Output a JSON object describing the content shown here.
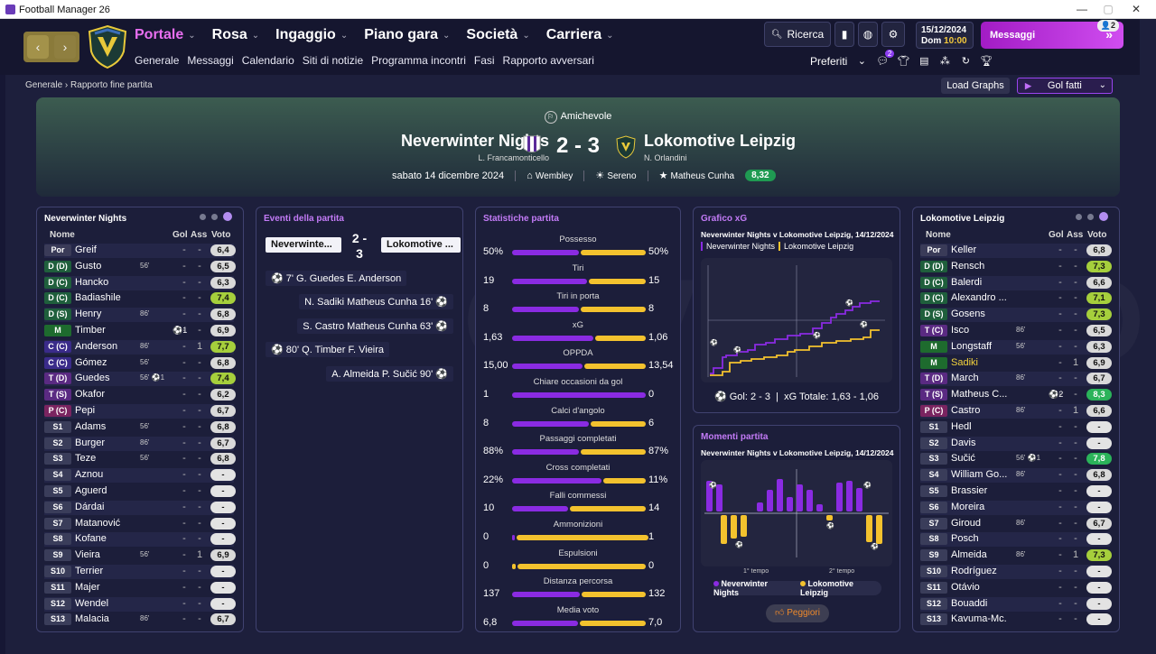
{
  "window": {
    "title": "Football Manager 26"
  },
  "nav": {
    "menu": [
      {
        "label": "Portale",
        "active": true
      },
      {
        "label": "Rosa"
      },
      {
        "label": "Ingaggio"
      },
      {
        "label": "Piano gara"
      },
      {
        "label": "Società"
      },
      {
        "label": "Carriera"
      }
    ],
    "submenu": [
      "Generale",
      "Messaggi",
      "Calendario",
      "Siti di notizie",
      "Programma incontri",
      "Fasi",
      "Rapporto avversari"
    ],
    "search": "Ricerca",
    "date": "15/12/2024",
    "day": "Dom",
    "time": "10:00",
    "messages": "Messaggi",
    "messages_count": "2",
    "favorites": "Preferiti",
    "fav_badge": "2"
  },
  "breadcrumb": {
    "root": "Generale",
    "current": "Rapporto fine partita"
  },
  "actions": {
    "load_graphs": "Load Graphs",
    "gol_fatti": "Gol fatti"
  },
  "match": {
    "competition": "Amichevole",
    "home": "Neverwinter Nights",
    "home_manager": "L. Francamonticello",
    "away": "Lokomotive Leipzig",
    "away_manager": "N. Orlandini",
    "score": "2 - 3",
    "date": "sabato 14 dicembre 2024",
    "stadium": "Wembley",
    "weather": "Sereno",
    "motm": "Matheus Cunha",
    "motm_rating": "8,32"
  },
  "home_panel": {
    "title": "Neverwinter Nights",
    "cols": [
      "Nome",
      "Gol",
      "Ass",
      "Voto"
    ],
    "rows": [
      {
        "pos": "Por",
        "name": "Greif",
        "ev": "",
        "g": "-",
        "a": "-",
        "r": "6,4"
      },
      {
        "pos": "D (D)",
        "name": "Gusto",
        "ev": "56'",
        "g": "-",
        "a": "-",
        "r": "6,5"
      },
      {
        "pos": "D (C)",
        "name": "Hancko",
        "ev": "",
        "g": "-",
        "a": "-",
        "r": "6,3"
      },
      {
        "pos": "D (C)",
        "name": "Badiashile",
        "ev": "",
        "g": "-",
        "a": "-",
        "r": "7,4"
      },
      {
        "pos": "D (S)",
        "name": "Henry",
        "ev": "86'",
        "g": "-",
        "a": "-",
        "r": "6,8"
      },
      {
        "pos": "M",
        "name": "Timber",
        "ev": "⚽1",
        "g": "-",
        "a": "-",
        "r": "6,9"
      },
      {
        "pos": "C (C)",
        "name": "Anderson",
        "ev": "86'",
        "g": "-",
        "a": "1",
        "r": "7,7"
      },
      {
        "pos": "C (C)",
        "name": "Gómez",
        "ev": "56'",
        "g": "-",
        "a": "-",
        "r": "6,8"
      },
      {
        "pos": "T (D)",
        "name": "Guedes",
        "ev": "56' ⚽1",
        "g": "-",
        "a": "-",
        "r": "7,4"
      },
      {
        "pos": "T (S)",
        "name": "Okafor",
        "ev": "",
        "g": "-",
        "a": "-",
        "r": "6,2"
      },
      {
        "pos": "P (C)",
        "name": "Pepi",
        "ev": "",
        "g": "-",
        "a": "-",
        "r": "6,7"
      },
      {
        "pos": "S1",
        "name": "Adams",
        "ev": "56'",
        "g": "-",
        "a": "-",
        "r": "6,8"
      },
      {
        "pos": "S2",
        "name": "Burger",
        "ev": "86'",
        "g": "-",
        "a": "-",
        "r": "6,7"
      },
      {
        "pos": "S3",
        "name": "Teze",
        "ev": "56'",
        "g": "-",
        "a": "-",
        "r": "6,8"
      },
      {
        "pos": "S4",
        "name": "Aznou",
        "ev": "",
        "g": "-",
        "a": "-",
        "r": "-"
      },
      {
        "pos": "S5",
        "name": "Aguerd",
        "ev": "",
        "g": "-",
        "a": "-",
        "r": "-"
      },
      {
        "pos": "S6",
        "name": "Dárdai",
        "ev": "",
        "g": "-",
        "a": "-",
        "r": "-"
      },
      {
        "pos": "S7",
        "name": "Matanović",
        "ev": "",
        "g": "-",
        "a": "-",
        "r": "-"
      },
      {
        "pos": "S8",
        "name": "Kofane",
        "ev": "",
        "g": "-",
        "a": "-",
        "r": "-"
      },
      {
        "pos": "S9",
        "name": "Vieira",
        "ev": "56'",
        "g": "-",
        "a": "1",
        "r": "6,9"
      },
      {
        "pos": "S10",
        "name": "Terrier",
        "ev": "",
        "g": "-",
        "a": "-",
        "r": "-"
      },
      {
        "pos": "S11",
        "name": "Majer",
        "ev": "",
        "g": "-",
        "a": "-",
        "r": "-"
      },
      {
        "pos": "S12",
        "name": "Wendel",
        "ev": "",
        "g": "-",
        "a": "-",
        "r": "-"
      },
      {
        "pos": "S13",
        "name": "Malacia",
        "ev": "86'",
        "g": "-",
        "a": "-",
        "r": "6,7"
      }
    ]
  },
  "events_panel": {
    "title": "Eventi della partita",
    "home": "Neverwinte...",
    "away": "Lokomotive ...",
    "score_top": "2 -",
    "score_bottom": "3",
    "events": [
      {
        "side": "home",
        "text": "7' G. Guedes E. Anderson"
      },
      {
        "side": "away",
        "text": "N. Sadiki Matheus Cunha 16'"
      },
      {
        "side": "away",
        "text": "S. Castro Matheus Cunha 63'"
      },
      {
        "side": "home",
        "text": "80' Q. Timber F. Vieira"
      },
      {
        "side": "away",
        "text": "A. Almeida P. Sučić 90'"
      }
    ]
  },
  "stats_panel": {
    "title": "Statistiche partita",
    "stats": [
      {
        "label": "Possesso",
        "home": "50%",
        "away": "50%",
        "hv": 50,
        "av": 50
      },
      {
        "label": "Tiri",
        "home": "19",
        "away": "15",
        "hv": 19,
        "av": 15
      },
      {
        "label": "Tiri in porta",
        "home": "8",
        "away": "8",
        "hv": 8,
        "av": 8
      },
      {
        "label": "xG",
        "home": "1,63",
        "away": "1,06",
        "hv": 1.63,
        "av": 1.06
      },
      {
        "label": "OPPDA",
        "home": "15,00",
        "away": "13,54",
        "hv": 15,
        "av": 13.54
      },
      {
        "label": "Chiare occasioni da gol",
        "home": "1",
        "away": "0",
        "hv": 1,
        "av": 0
      },
      {
        "label": "Calci d'angolo",
        "home": "8",
        "away": "6",
        "hv": 8,
        "av": 6
      },
      {
        "label": "Passaggi completati",
        "home": "88%",
        "away": "87%",
        "hv": 88,
        "av": 87
      },
      {
        "label": "Cross completati",
        "home": "22%",
        "away": "11%",
        "hv": 22,
        "av": 11
      },
      {
        "label": "Falli commessi",
        "home": "10",
        "away": "14",
        "hv": 10,
        "av": 14
      },
      {
        "label": "Ammonizioni",
        "home": "0",
        "away": "1",
        "hv": 0,
        "av": 1
      },
      {
        "label": "Espulsioni",
        "home": "0",
        "away": "0",
        "hv": 0,
        "av": 0
      },
      {
        "label": "Distanza percorsa",
        "home": "137",
        "away": "132",
        "hv": 137,
        "av": 132
      },
      {
        "label": "Media voto",
        "home": "6,8",
        "away": "7,0",
        "hv": 6.8,
        "av": 7.0
      }
    ]
  },
  "xg_panel": {
    "title": "Grafico xG",
    "subtitle": "Neverwinter Nights v Lokomotive Leipzig, 14/12/2024",
    "legend_home": "Neverwinter Nights",
    "legend_away": "Lokomotive Leipzig",
    "goals": "Gol: 2 - 3",
    "xg_total": "xG Totale: 1,63 - 1,06"
  },
  "moments_panel": {
    "title": "Momenti partita",
    "subtitle": "Neverwinter Nights v Lokomotive Leipzig, 14/12/2024",
    "first_half": "1° tempo",
    "second_half": "2° tempo",
    "legend_home": "Neverwinter Nights",
    "legend_away": "Lokomotive Leipzig",
    "worst": "Peggiori"
  },
  "away_panel": {
    "title": "Lokomotive Leipzig",
    "cols": [
      "Nome",
      "Gol",
      "Ass",
      "Voto"
    ],
    "rows": [
      {
        "pos": "Por",
        "name": "Keller",
        "ev": "",
        "g": "-",
        "a": "-",
        "r": "6,8"
      },
      {
        "pos": "D (D)",
        "name": "Rensch",
        "ev": "",
        "g": "-",
        "a": "-",
        "r": "7,3"
      },
      {
        "pos": "D (C)",
        "name": "Balerdi",
        "ev": "",
        "g": "-",
        "a": "-",
        "r": "6,6"
      },
      {
        "pos": "D (C)",
        "name": "Alexandro ...",
        "ev": "",
        "g": "-",
        "a": "-",
        "r": "7,1"
      },
      {
        "pos": "D (S)",
        "name": "Gosens",
        "ev": "",
        "g": "-",
        "a": "-",
        "r": "7,3"
      },
      {
        "pos": "T (C)",
        "name": "Isco",
        "ev": "86'",
        "g": "-",
        "a": "-",
        "r": "6,5"
      },
      {
        "pos": "M",
        "name": "Longstaff",
        "ev": "56'",
        "g": "-",
        "a": "-",
        "r": "6,3"
      },
      {
        "pos": "M",
        "name": "Sadiki",
        "ev": "",
        "g": "-",
        "a": "1",
        "r": "6,9"
      },
      {
        "pos": "T (D)",
        "name": "March",
        "ev": "86'",
        "g": "-",
        "a": "-",
        "r": "6,7"
      },
      {
        "pos": "T (S)",
        "name": "Matheus C...",
        "ev": "⚽2",
        "g": "-",
        "a": "-",
        "r": "8,3"
      },
      {
        "pos": "P (C)",
        "name": "Castro",
        "ev": "86'",
        "g": "-",
        "a": "1",
        "r": "6,6"
      },
      {
        "pos": "S1",
        "name": "Hedl",
        "ev": "",
        "g": "-",
        "a": "-",
        "r": "-"
      },
      {
        "pos": "S2",
        "name": "Davis",
        "ev": "",
        "g": "-",
        "a": "-",
        "r": "-"
      },
      {
        "pos": "S3",
        "name": "Sučić",
        "ev": "56' ⚽1",
        "g": "-",
        "a": "-",
        "r": "7,8"
      },
      {
        "pos": "S4",
        "name": "William Go...",
        "ev": "86'",
        "g": "-",
        "a": "-",
        "r": "6,8"
      },
      {
        "pos": "S5",
        "name": "Brassier",
        "ev": "",
        "g": "-",
        "a": "-",
        "r": "-"
      },
      {
        "pos": "S6",
        "name": "Moreira",
        "ev": "",
        "g": "-",
        "a": "-",
        "r": "-"
      },
      {
        "pos": "S7",
        "name": "Giroud",
        "ev": "86'",
        "g": "-",
        "a": "-",
        "r": "6,7"
      },
      {
        "pos": "S8",
        "name": "Posch",
        "ev": "",
        "g": "-",
        "a": "-",
        "r": "-"
      },
      {
        "pos": "S9",
        "name": "Almeida",
        "ev": "86'",
        "g": "-",
        "a": "1",
        "r": "7,3"
      },
      {
        "pos": "S10",
        "name": "Rodríguez",
        "ev": "",
        "g": "-",
        "a": "-",
        "r": "-"
      },
      {
        "pos": "S11",
        "name": "Otávio",
        "ev": "",
        "g": "-",
        "a": "-",
        "r": "-"
      },
      {
        "pos": "S12",
        "name": "Bouaddi",
        "ev": "",
        "g": "-",
        "a": "-",
        "r": "-"
      },
      {
        "pos": "S13",
        "name": "Kavuma-Mc...",
        "ev": "",
        "g": "-",
        "a": "-",
        "r": "-"
      }
    ]
  },
  "colors": {
    "home": "#8a2be2",
    "away": "#f3c22e",
    "accent": "#e86ef0"
  }
}
